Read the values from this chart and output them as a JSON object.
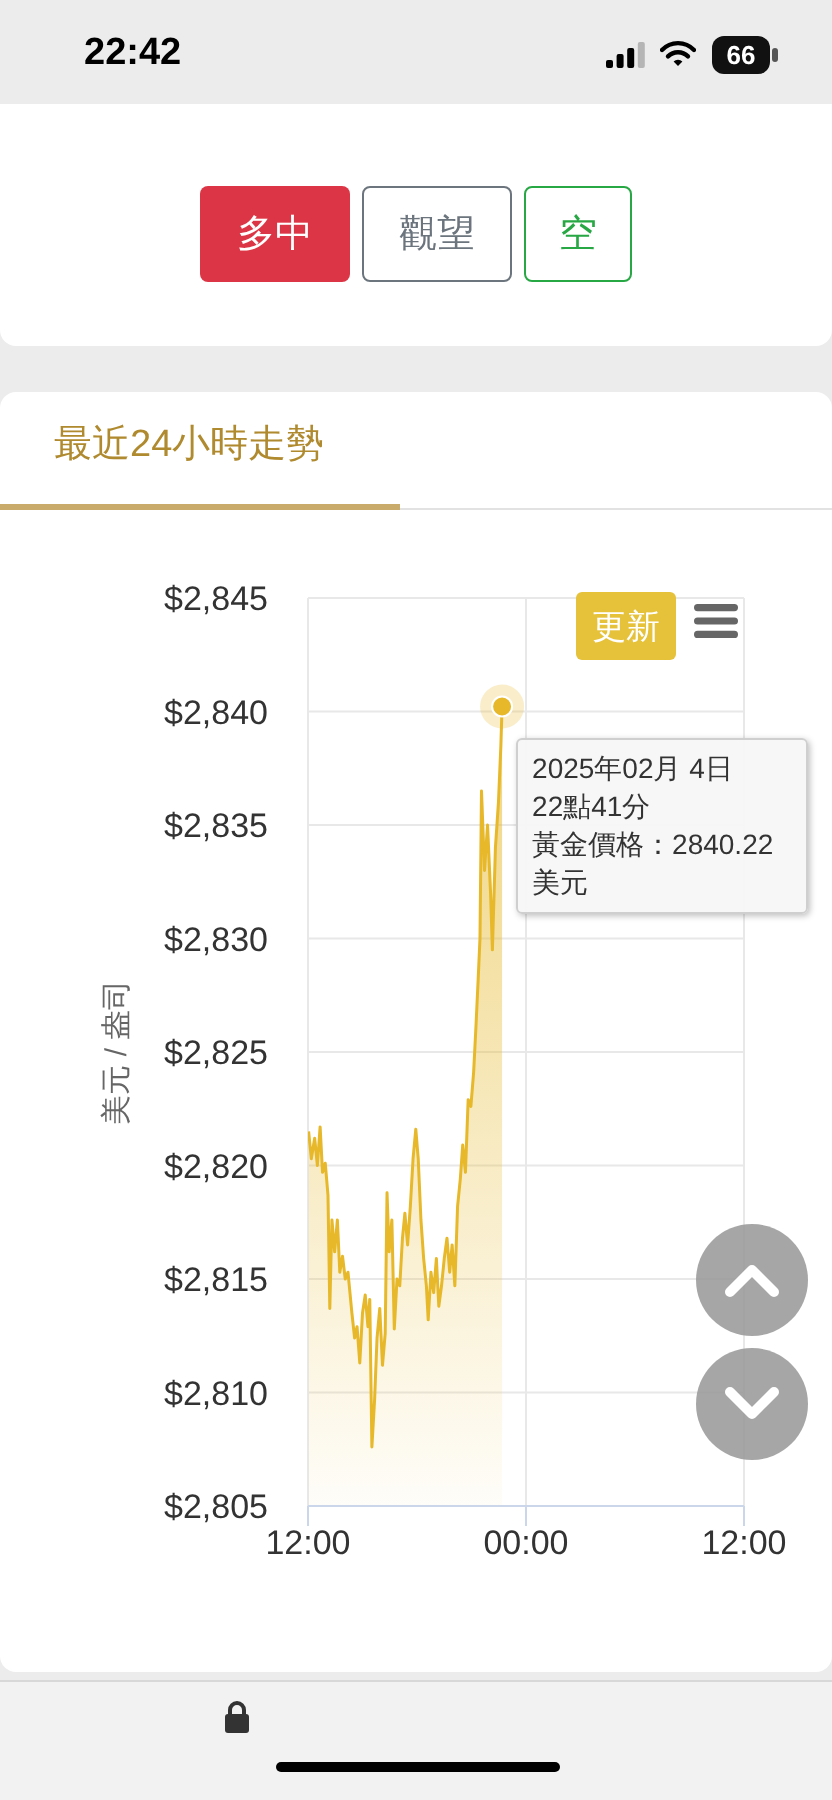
{
  "chart_data": {
    "type": "area",
    "title": "最近24小時走勢",
    "ylabel": "美元 / 盎司",
    "color": "#e6b82a",
    "grid": true,
    "xlim": [
      "2025-02-04T12:00",
      "2025-02-05T12:00"
    ],
    "xticks": [
      {
        "value": "2025-02-04T12:00",
        "label": "12:00"
      },
      {
        "value": "2025-02-05T00:00",
        "label": "00:00"
      },
      {
        "value": "2025-02-05T12:00",
        "label": "12:00"
      }
    ],
    "ylim": [
      2805,
      2845
    ],
    "yticks": [
      {
        "value": 2805,
        "label": "$2,805"
      },
      {
        "value": 2810,
        "label": "$2,810"
      },
      {
        "value": 2815,
        "label": "$2,815"
      },
      {
        "value": 2820,
        "label": "$2,820"
      },
      {
        "value": 2825,
        "label": "$2,825"
      },
      {
        "value": 2830,
        "label": "$2,830"
      },
      {
        "value": 2835,
        "label": "$2,835"
      },
      {
        "value": 2840,
        "label": "$2,840"
      },
      {
        "value": 2845,
        "label": "$2,845"
      }
    ],
    "x": [
      "2025-02-04T12:02",
      "2025-02-04T12:11",
      "2025-02-04T12:22",
      "2025-02-04T12:31",
      "2025-02-04T12:40",
      "2025-02-04T12:48",
      "2025-02-04T12:57",
      "2025-02-04T13:06",
      "2025-02-04T13:12",
      "2025-02-04T13:19",
      "2025-02-04T13:28",
      "2025-02-04T13:37",
      "2025-02-04T13:45",
      "2025-02-04T13:54",
      "2025-02-04T14:03",
      "2025-02-04T14:12",
      "2025-02-04T14:25",
      "2025-02-04T14:34",
      "2025-02-04T14:42",
      "2025-02-04T14:51",
      "2025-02-04T15:00",
      "2025-02-04T15:09",
      "2025-02-04T15:18",
      "2025-02-04T15:24",
      "2025-02-04T15:31",
      "2025-02-04T15:40",
      "2025-02-04T15:48",
      "2025-02-04T15:57",
      "2025-02-04T16:06",
      "2025-02-04T16:15",
      "2025-02-04T16:21",
      "2025-02-04T16:28",
      "2025-02-04T16:37",
      "2025-02-04T16:45",
      "2025-02-04T16:54",
      "2025-02-04T17:03",
      "2025-02-04T17:12",
      "2025-02-04T17:20",
      "2025-02-04T17:29",
      "2025-02-04T17:38",
      "2025-02-04T17:47",
      "2025-02-04T17:56",
      "2025-02-04T18:04",
      "2025-02-04T18:13",
      "2025-02-04T18:22",
      "2025-02-04T18:31",
      "2025-02-04T18:37",
      "2025-02-04T18:46",
      "2025-02-04T18:55",
      "2025-02-04T19:04",
      "2025-02-04T19:12",
      "2025-02-04T19:21",
      "2025-02-04T19:30",
      "2025-02-04T19:39",
      "2025-02-04T19:48",
      "2025-02-04T19:56",
      "2025-02-04T20:05",
      "2025-02-04T20:14",
      "2025-02-04T20:23",
      "2025-02-04T20:31",
      "2025-02-04T20:40",
      "2025-02-04T20:49",
      "2025-02-04T20:58",
      "2025-02-04T21:07",
      "2025-02-04T21:15",
      "2025-02-04T21:22",
      "2025-02-04T21:28",
      "2025-02-04T21:33",
      "2025-02-04T21:43",
      "2025-02-04T21:53",
      "2025-02-04T22:03",
      "2025-02-04T22:09",
      "2025-02-04T22:19",
      "2025-02-04T22:29",
      "2025-02-04T22:37",
      "2025-02-04T22:41"
    ],
    "values": [
      2821.5,
      2820.3,
      2821.2,
      2820.0,
      2821.7,
      2819.7,
      2820.1,
      2818.7,
      2813.7,
      2817.6,
      2816.2,
      2817.6,
      2815.3,
      2816.0,
      2815.0,
      2815.3,
      2813.5,
      2812.4,
      2812.9,
      2811.3,
      2813.5,
      2814.3,
      2812.9,
      2814.1,
      2807.6,
      2809.7,
      2812.4,
      2813.7,
      2811.2,
      2812.6,
      2818.8,
      2816.2,
      2817.6,
      2812.8,
      2815.0,
      2814.7,
      2816.8,
      2817.9,
      2816.5,
      2818.2,
      2820.3,
      2821.6,
      2820.3,
      2817.6,
      2815.9,
      2814.7,
      2813.2,
      2815.3,
      2814.4,
      2815.9,
      2813.8,
      2814.7,
      2815.9,
      2816.8,
      2815.3,
      2816.5,
      2814.7,
      2818.2,
      2819.4,
      2820.9,
      2819.7,
      2822.9,
      2822.6,
      2824.1,
      2826.2,
      2828.2,
      2830.0,
      2836.5,
      2833.0,
      2835.0,
      2832.0,
      2829.5,
      2834.0,
      2836.0,
      2838.5,
      2840.22
    ],
    "annotations": [
      "22:42",
      "66",
      "多中",
      "觀望",
      "空",
      "更新",
      "黃金價格：2840.22 美元",
      {
        "text": "2025年02月 4日 22點41分",
        "x": "2025-02-04T22:41",
        "y": 2840.22
      }
    ]
  }
}
